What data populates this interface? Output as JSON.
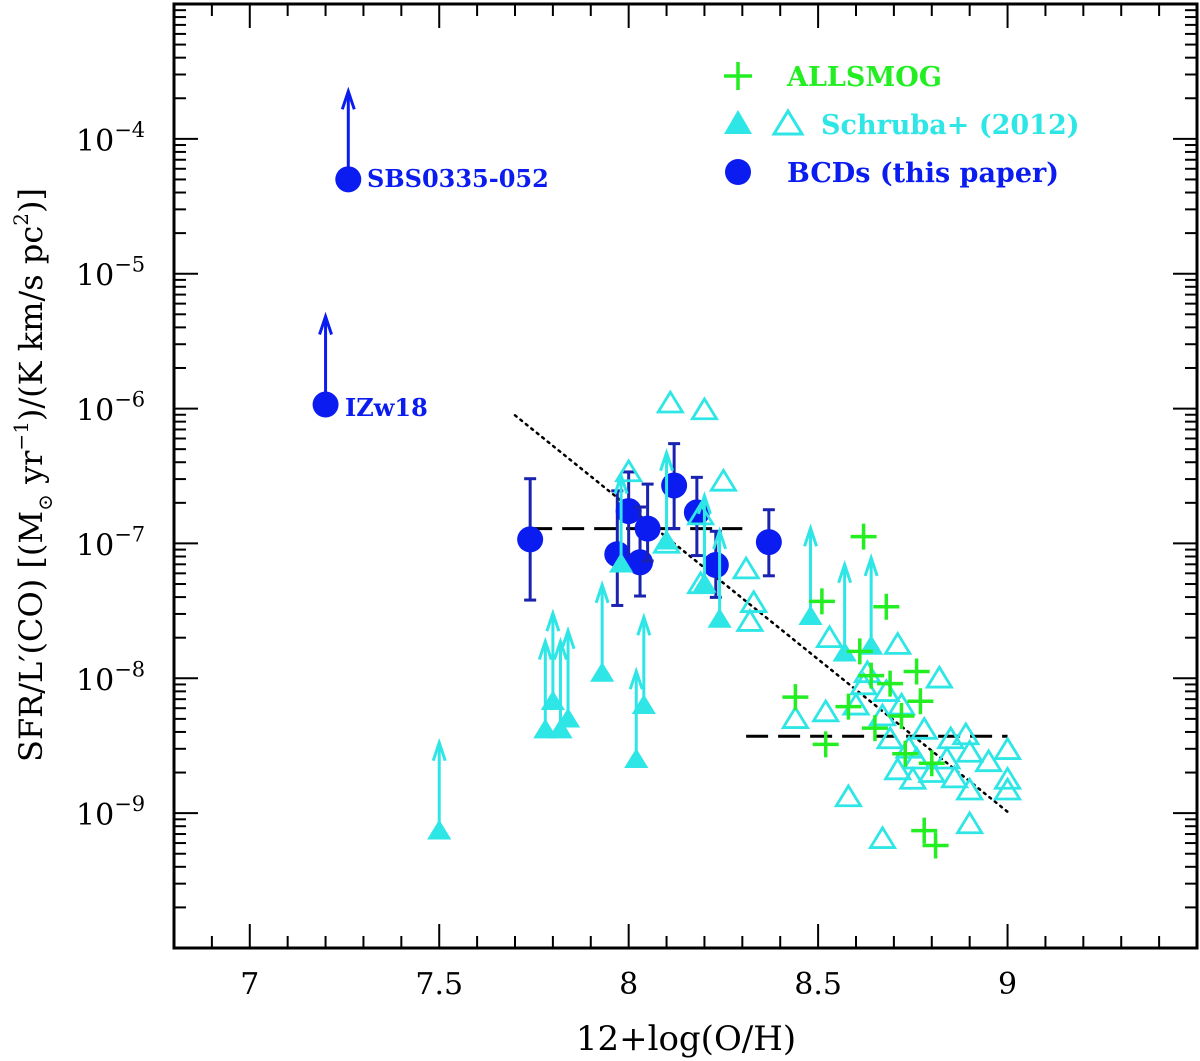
{
  "chart_data": {
    "type": "scatter",
    "title": "",
    "xlabel": "12+log(O/H)",
    "ylabel": {
      "pre": "SFR/L′(CO) [(M",
      "sun": "⊙",
      "mid": " yr",
      "exp1": "−1",
      "post": ")/(K km/s pc",
      "exp2": "2",
      "end": ")]"
    },
    "xlim": [
      6.8,
      9.5
    ],
    "ylim_log10": [
      -10,
      -3
    ],
    "x_ticks": [
      {
        "value": 7,
        "label": "7"
      },
      {
        "value": 7.5,
        "label": "7.5"
      },
      {
        "value": 8,
        "label": "8"
      },
      {
        "value": 8.5,
        "label": "8.5"
      },
      {
        "value": 9,
        "label": "9"
      }
    ],
    "y_ticks": [
      {
        "exp": -4,
        "base": "10",
        "sup": "−4"
      },
      {
        "exp": -5,
        "base": "10",
        "sup": "−5"
      },
      {
        "exp": -6,
        "base": "10",
        "sup": "−6"
      },
      {
        "exp": -7,
        "base": "10",
        "sup": "−7"
      },
      {
        "exp": -8,
        "base": "10",
        "sup": "−8"
      },
      {
        "exp": -9,
        "base": "10",
        "sup": "−9"
      }
    ],
    "colors": {
      "bcd": "#0b1cf0",
      "bcd_err": "#1a22b0",
      "schruba": "#2ee6e6",
      "allsmog": "#22ee22",
      "axis": "#000000"
    },
    "legend": {
      "position": "top-right",
      "entries": [
        {
          "key": "allsmog",
          "label": "ALLSMOG"
        },
        {
          "key": "schruba",
          "label": "Schruba+ (2012)"
        },
        {
          "key": "bcd",
          "label": "BCDs (this paper)"
        }
      ]
    },
    "series": [
      {
        "name": "BCDs (this paper)",
        "marker": "filled-circle",
        "points": [
          {
            "x": 7.74,
            "y": -6.97,
            "ylo": -7.42,
            "yhi": -6.52
          },
          {
            "x": 7.97,
            "y": -7.08,
            "ylo": -7.46,
            "yhi": -6.61
          },
          {
            "x": 8.0,
            "y": -6.76,
            "ylo": -7.16,
            "yhi": -6.47
          },
          {
            "x": 8.03,
            "y": -7.14,
            "ylo": -7.39,
            "yhi": -6.73
          },
          {
            "x": 8.05,
            "y": -6.89,
            "ylo": -7.13,
            "yhi": -6.56
          },
          {
            "x": 8.12,
            "y": -6.57,
            "ylo": -6.89,
            "yhi": -6.26
          },
          {
            "x": 8.18,
            "y": -6.77,
            "ylo": -7.09,
            "yhi": -6.51
          },
          {
            "x": 8.23,
            "y": -7.16,
            "ylo": -7.4,
            "yhi": -6.91
          },
          {
            "x": 8.37,
            "y": -6.99,
            "ylo": -7.24,
            "yhi": -6.75
          }
        ]
      },
      {
        "name": "BCDs (this paper) lower limits",
        "marker": "filled-circle-arrow",
        "points": [
          {
            "x": 7.26,
            "y": -4.3,
            "label": "SBS0335-052"
          },
          {
            "x": 7.2,
            "y": -5.97,
            "label": "IZw18"
          }
        ]
      },
      {
        "name": "Schruba+ (2012) detections",
        "marker": "open-triangle",
        "points": [
          {
            "x": 8.11,
            "y": -5.96
          },
          {
            "x": 8.2,
            "y": -6.01
          },
          {
            "x": 8.0,
            "y": -6.47
          },
          {
            "x": 8.25,
            "y": -6.54
          },
          {
            "x": 8.19,
            "y": -6.79
          },
          {
            "x": 8.1,
            "y": -7.0
          },
          {
            "x": 8.31,
            "y": -7.19
          },
          {
            "x": 8.19,
            "y": -7.3
          },
          {
            "x": 8.33,
            "y": -7.44
          },
          {
            "x": 8.32,
            "y": -7.58
          },
          {
            "x": 8.53,
            "y": -7.7
          },
          {
            "x": 8.63,
            "y": -7.96
          },
          {
            "x": 8.71,
            "y": -7.75
          },
          {
            "x": 8.82,
            "y": -8.0
          },
          {
            "x": 8.62,
            "y": -8.05
          },
          {
            "x": 8.68,
            "y": -8.1
          },
          {
            "x": 8.44,
            "y": -8.3
          },
          {
            "x": 8.52,
            "y": -8.25
          },
          {
            "x": 8.6,
            "y": -8.2
          },
          {
            "x": 8.67,
            "y": -8.28
          },
          {
            "x": 8.72,
            "y": -8.2
          },
          {
            "x": 8.78,
            "y": -8.38
          },
          {
            "x": 8.85,
            "y": -8.45
          },
          {
            "x": 8.69,
            "y": -8.45
          },
          {
            "x": 8.74,
            "y": -8.52
          },
          {
            "x": 8.89,
            "y": -8.42
          },
          {
            "x": 8.76,
            "y": -8.6
          },
          {
            "x": 8.84,
            "y": -8.6
          },
          {
            "x": 8.71,
            "y": -8.68
          },
          {
            "x": 8.8,
            "y": -8.7
          },
          {
            "x": 8.9,
            "y": -8.55
          },
          {
            "x": 8.95,
            "y": -8.62
          },
          {
            "x": 9.0,
            "y": -8.53
          },
          {
            "x": 8.75,
            "y": -8.75
          },
          {
            "x": 8.86,
            "y": -8.74
          },
          {
            "x": 8.9,
            "y": -8.83
          },
          {
            "x": 9.0,
            "y": -8.75
          },
          {
            "x": 9.0,
            "y": -8.83
          },
          {
            "x": 8.58,
            "y": -8.88
          },
          {
            "x": 8.9,
            "y": -9.08
          },
          {
            "x": 8.67,
            "y": -9.19
          }
        ]
      },
      {
        "name": "Schruba+ (2012) lower limits",
        "marker": "filled-triangle-arrow",
        "points": [
          {
            "x": 7.5,
            "y": -9.13
          },
          {
            "x": 7.78,
            "y": -8.38
          },
          {
            "x": 7.8,
            "y": -8.17
          },
          {
            "x": 7.82,
            "y": -8.38
          },
          {
            "x": 7.84,
            "y": -8.3
          },
          {
            "x": 7.93,
            "y": -7.96
          },
          {
            "x": 7.98,
            "y": -7.15
          },
          {
            "x": 8.02,
            "y": -8.6
          },
          {
            "x": 8.04,
            "y": -8.2
          },
          {
            "x": 8.1,
            "y": -6.98
          },
          {
            "x": 8.2,
            "y": -7.3
          },
          {
            "x": 8.24,
            "y": -7.56
          },
          {
            "x": 8.48,
            "y": -7.54
          },
          {
            "x": 8.57,
            "y": -7.81
          },
          {
            "x": 8.64,
            "y": -7.76
          }
        ]
      },
      {
        "name": "ALLSMOG",
        "marker": "plus",
        "points": [
          {
            "x": 8.62,
            "y": -6.95
          },
          {
            "x": 8.51,
            "y": -7.43
          },
          {
            "x": 8.68,
            "y": -7.47
          },
          {
            "x": 8.61,
            "y": -7.8
          },
          {
            "x": 8.76,
            "y": -7.95
          },
          {
            "x": 8.64,
            "y": -7.98
          },
          {
            "x": 8.69,
            "y": -8.04
          },
          {
            "x": 8.44,
            "y": -8.14
          },
          {
            "x": 8.77,
            "y": -8.17
          },
          {
            "x": 8.58,
            "y": -8.21
          },
          {
            "x": 8.72,
            "y": -8.28
          },
          {
            "x": 8.65,
            "y": -8.37
          },
          {
            "x": 8.52,
            "y": -8.49
          },
          {
            "x": 8.73,
            "y": -8.56
          },
          {
            "x": 8.8,
            "y": -8.63
          },
          {
            "x": 8.78,
            "y": -9.13
          },
          {
            "x": 8.81,
            "y": -9.24
          }
        ]
      }
    ],
    "reference_lines": [
      {
        "style": "dashed",
        "x": [
          7.74,
          8.3
        ],
        "y": [
          -6.89,
          -6.89
        ]
      },
      {
        "style": "dashed",
        "x": [
          8.31,
          9.0
        ],
        "y": [
          -8.43,
          -8.43
        ]
      },
      {
        "style": "dotted",
        "x": [
          7.7,
          9.0
        ],
        "y": [
          -6.05,
          -8.99
        ]
      }
    ]
  }
}
